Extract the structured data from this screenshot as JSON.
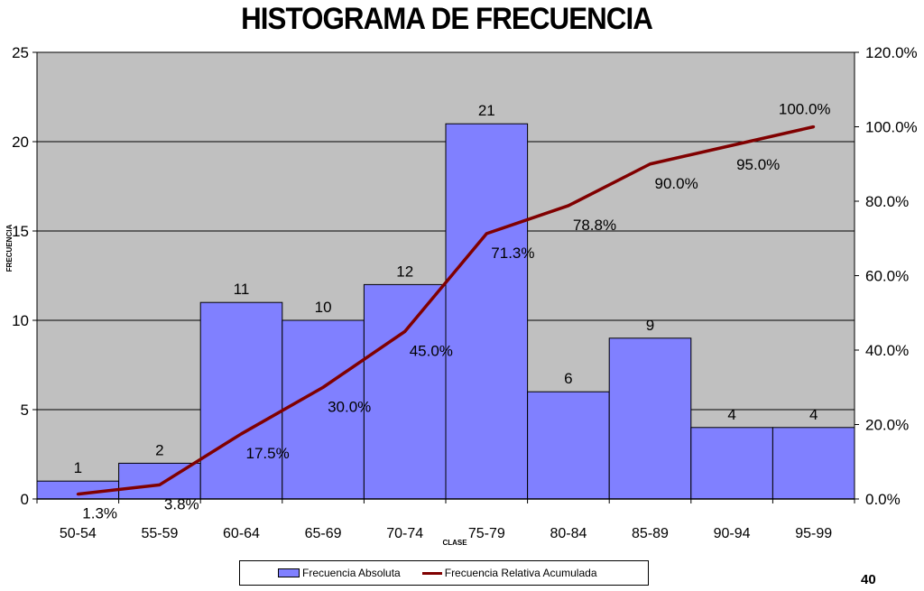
{
  "chart_data": {
    "type": "bar",
    "title": "HISTOGRAMA DE FRECUENCIA",
    "xlabel": "CLASE",
    "ylabel": "FRECUENCIA",
    "categories": [
      "50-54",
      "55-59",
      "60-64",
      "65-69",
      "70-74",
      "75-79",
      "80-84",
      "85-89",
      "90-94",
      "95-99"
    ],
    "ylim": [
      0,
      25
    ],
    "y_ticks": [
      "0",
      "5",
      "10",
      "15",
      "20",
      "25"
    ],
    "y2lim": [
      0,
      120
    ],
    "y2_ticks": [
      "0.0%",
      "20.0%",
      "40.0%",
      "60.0%",
      "80.0%",
      "100.0%",
      "120.0%"
    ],
    "grid": true,
    "legend_position": "bottom",
    "series": [
      {
        "name": "Frecuencia Absoluta",
        "type": "bar",
        "axis": "left",
        "color": "#8080ff",
        "values": [
          1,
          2,
          11,
          10,
          12,
          21,
          6,
          9,
          4,
          4
        ],
        "labels": [
          "1",
          "2",
          "11",
          "10",
          "12",
          "21",
          "6",
          "9",
          "4",
          "4"
        ]
      },
      {
        "name": "Frecuencia Relativa Acumulada",
        "type": "line",
        "axis": "right",
        "color": "#800000",
        "values": [
          1.3,
          3.8,
          17.5,
          30.0,
          45.0,
          71.3,
          78.8,
          90.0,
          95.0,
          100.0
        ],
        "labels": [
          "1.3%",
          "3.8%",
          "17.5%",
          "30.0%",
          "45.0%",
          "71.3%",
          "78.8%",
          "90.0%",
          "95.0%",
          "100.0%"
        ]
      }
    ]
  },
  "colors": {
    "plot_background": "#c0c0c0",
    "bar_fill": "#8080ff",
    "line": "#800000"
  },
  "page_number": "40"
}
